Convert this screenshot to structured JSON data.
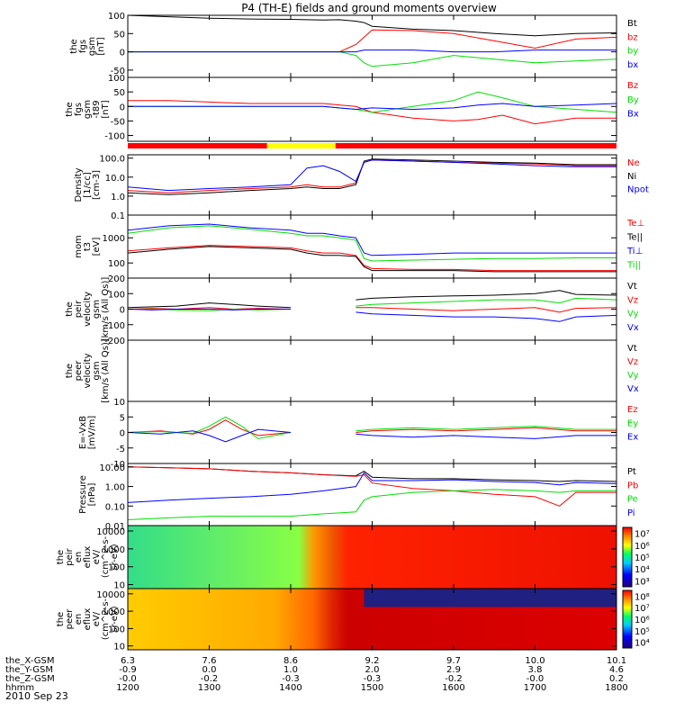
{
  "title": "P4 (TH-E) fields and ground moments overview",
  "date": "2010 Sep 23",
  "colors": {
    "black": "#000000",
    "red": "#ff0000",
    "green": "#00e000",
    "blue": "#0000ff",
    "yellow": "#ffff00"
  },
  "mode_bar": [
    {
      "from": 0,
      "to": 0.285,
      "color": "red"
    },
    {
      "from": 0.285,
      "to": 0.425,
      "color": "yellow"
    },
    {
      "from": 0.425,
      "to": 1,
      "color": "red"
    }
  ],
  "chart_data": [
    {
      "id": "p1",
      "type": "line",
      "ylabel": [
        "the",
        "fgs",
        "gsm",
        "[nT]"
      ],
      "ylim": [
        -70,
        100
      ],
      "log": false,
      "yticks": [
        {
          "v": 100,
          "t": "100"
        },
        {
          "v": 50,
          "t": "50"
        },
        {
          "v": 0,
          "t": "0"
        },
        {
          "v": -50,
          "t": "-50"
        }
      ],
      "x": [
        12.0,
        12.5,
        13.0,
        13.5,
        14.0,
        14.2,
        14.4,
        14.6,
        14.8,
        14.9,
        15.0,
        15.5,
        16.0,
        16.5,
        17.0,
        17.5,
        18.0
      ],
      "series": [
        {
          "name": "Bt",
          "color": "black",
          "values": [
            100,
            96,
            92,
            90,
            89,
            88,
            87,
            88,
            84,
            80,
            70,
            62,
            58,
            50,
            44,
            50,
            52
          ]
        },
        {
          "name": "bz",
          "color": "red",
          "values": [
            0,
            0,
            0,
            0,
            0,
            0,
            0,
            0,
            20,
            40,
            60,
            58,
            50,
            30,
            10,
            35,
            40
          ]
        },
        {
          "name": "by",
          "color": "green",
          "values": [
            0,
            0,
            0,
            0,
            0,
            0,
            0,
            0,
            -10,
            -30,
            -40,
            -30,
            -10,
            -20,
            -30,
            -25,
            -20
          ]
        },
        {
          "name": "bx",
          "color": "blue",
          "values": [
            0,
            0,
            0,
            0,
            0,
            0,
            0,
            0,
            0,
            5,
            5,
            5,
            0,
            0,
            5,
            5,
            5
          ]
        }
      ]
    },
    {
      "id": "p2",
      "type": "line",
      "ylabel": [
        "the",
        "fgs",
        "gsm",
        "-t89",
        "[nT]"
      ],
      "ylim": [
        -120,
        100
      ],
      "log": false,
      "yticks": [
        {
          "v": 100,
          "t": "100"
        },
        {
          "v": 50,
          "t": "50"
        },
        {
          "v": 0,
          "t": "0"
        },
        {
          "v": -50,
          "t": "-50"
        },
        {
          "v": -100,
          "t": "-100"
        }
      ],
      "x": [
        12.0,
        12.5,
        13.0,
        13.5,
        14.0,
        14.4,
        14.8,
        15.0,
        15.5,
        16.0,
        16.3,
        16.6,
        17.0,
        17.5,
        18.0
      ],
      "series": [
        {
          "name": "Bz",
          "color": "red",
          "values": [
            20,
            20,
            15,
            10,
            10,
            10,
            0,
            -20,
            -40,
            -50,
            -45,
            -30,
            -60,
            -40,
            -40
          ]
        },
        {
          "name": "By",
          "color": "green",
          "values": [
            0,
            0,
            0,
            0,
            0,
            0,
            -10,
            -20,
            0,
            20,
            50,
            30,
            0,
            -10,
            -20
          ]
        },
        {
          "name": "Bx",
          "color": "blue",
          "values": [
            0,
            0,
            0,
            0,
            0,
            0,
            -10,
            -5,
            -10,
            -5,
            5,
            10,
            0,
            5,
            10
          ]
        }
      ]
    },
    {
      "id": "p3",
      "type": "line",
      "ylabel": [
        "Density",
        "[1/cc]",
        "[cm-3]"
      ],
      "ylim": [
        0.1,
        150
      ],
      "log": true,
      "yticks": [
        {
          "v": 100,
          "t": "100.0"
        },
        {
          "v": 10,
          "t": "10.0"
        },
        {
          "v": 1,
          "t": "1.0"
        },
        {
          "v": 0.1,
          "t": "0.1"
        }
      ],
      "x": [
        12.0,
        12.5,
        13.0,
        13.5,
        14.0,
        14.2,
        14.4,
        14.6,
        14.8,
        14.9,
        15.0,
        15.5,
        16.0,
        16.5,
        17.0,
        17.5,
        18.0
      ],
      "series": [
        {
          "name": "Ne",
          "color": "red",
          "values": [
            2,
            1.5,
            2,
            2.5,
            3,
            4,
            3,
            3,
            5,
            60,
            80,
            70,
            60,
            55,
            50,
            40,
            40
          ]
        },
        {
          "name": "Ni",
          "color": "black",
          "values": [
            1.5,
            1.2,
            1.5,
            2,
            2.5,
            3,
            2.5,
            2.5,
            4,
            70,
            90,
            80,
            70,
            60,
            55,
            45,
            45
          ]
        },
        {
          "name": "Npot",
          "color": "blue",
          "values": [
            3,
            2,
            2.5,
            3,
            4,
            30,
            40,
            20,
            6,
            60,
            80,
            70,
            60,
            50,
            40,
            35,
            35
          ]
        }
      ]
    },
    {
      "id": "p4",
      "type": "line",
      "ylabel": [
        "mom",
        "t3",
        "[eV]"
      ],
      "ylim": [
        25,
        8000
      ],
      "log": true,
      "yticks": [
        {
          "v": 1000,
          "t": "1000"
        },
        {
          "v": 100,
          "t": "100"
        }
      ],
      "x": [
        12.0,
        12.5,
        13.0,
        13.5,
        14.0,
        14.2,
        14.4,
        14.6,
        14.8,
        14.9,
        15.0,
        15.5,
        16.0,
        16.5,
        17.0,
        17.5,
        18.0
      ],
      "series": [
        {
          "name": "Te⊥",
          "color": "red",
          "values": [
            300,
            400,
            500,
            450,
            400,
            300,
            250,
            250,
            200,
            80,
            60,
            55,
            55,
            50,
            50,
            50,
            50
          ]
        },
        {
          "name": "Te||",
          "color": "black",
          "values": [
            250,
            350,
            450,
            400,
            350,
            250,
            200,
            200,
            180,
            70,
            50,
            50,
            50,
            45,
            45,
            45,
            45
          ]
        },
        {
          "name": "Ti⊥",
          "color": "blue",
          "values": [
            2000,
            3000,
            3500,
            2500,
            2000,
            1500,
            1500,
            1200,
            1000,
            250,
            200,
            220,
            250,
            250,
            250,
            250,
            250
          ]
        },
        {
          "name": "Ti||",
          "color": "green",
          "values": [
            1500,
            2500,
            3000,
            2200,
            1500,
            1200,
            1200,
            1000,
            800,
            150,
            120,
            130,
            140,
            150,
            150,
            160,
            160
          ]
        }
      ]
    },
    {
      "id": "p5",
      "type": "line",
      "ylabel": [
        "the",
        "peir",
        "velocity",
        "gsm",
        "[km/s (All Qs)]"
      ],
      "ylim": [
        -200,
        200
      ],
      "log": false,
      "yticks": [
        {
          "v": 200,
          "t": "200"
        },
        {
          "v": 100,
          "t": "100"
        },
        {
          "v": 0,
          "t": "0"
        },
        {
          "v": -100,
          "t": "-100"
        },
        {
          "v": -200,
          "t": "-200"
        }
      ],
      "x": [
        12.0,
        12.3,
        12.6,
        13.0,
        13.3,
        13.6,
        14.0,
        14.2,
        14.8,
        15.0,
        15.5,
        16.0,
        16.5,
        17.0,
        17.3,
        17.5,
        18.0
      ],
      "series": [
        {
          "name": "Vt",
          "color": "black",
          "values": [
            10,
            15,
            20,
            40,
            30,
            20,
            10,
            null,
            60,
            70,
            80,
            85,
            90,
            100,
            120,
            95,
            90
          ]
        },
        {
          "name": "Vz",
          "color": "red",
          "values": [
            0,
            5,
            0,
            10,
            0,
            5,
            0,
            null,
            10,
            10,
            0,
            -10,
            0,
            10,
            -20,
            5,
            10
          ]
        },
        {
          "name": "Vy",
          "color": "green",
          "values": [
            0,
            0,
            -5,
            -10,
            0,
            -5,
            0,
            null,
            20,
            30,
            40,
            50,
            60,
            60,
            40,
            70,
            60
          ]
        },
        {
          "name": "Vx",
          "color": "blue",
          "values": [
            0,
            -5,
            0,
            0,
            -5,
            0,
            0,
            null,
            -20,
            -30,
            -40,
            -50,
            -50,
            -60,
            -80,
            -50,
            -40
          ]
        }
      ]
    },
    {
      "id": "p6",
      "type": "line",
      "ylabel": [
        "the",
        "peer",
        "velocity",
        "gsm",
        "[km/s (All Qs)]"
      ],
      "ylim": [
        -200,
        200
      ],
      "log": false,
      "yticks": [],
      "x": [],
      "series": [
        {
          "name": "Vt",
          "color": "black",
          "values": []
        },
        {
          "name": "Vz",
          "color": "red",
          "values": []
        },
        {
          "name": "Vy",
          "color": "green",
          "values": []
        },
        {
          "name": "Vx",
          "color": "blue",
          "values": []
        }
      ]
    },
    {
      "id": "p7",
      "type": "line",
      "ylabel": [
        "E=-VxB",
        "[mV/m]"
      ],
      "ylim": [
        -10,
        10
      ],
      "log": false,
      "yticks": [
        {
          "v": 10,
          "t": "10"
        },
        {
          "v": 5,
          "t": "5"
        },
        {
          "v": 0,
          "t": "0"
        },
        {
          "v": -5,
          "t": "-5"
        },
        {
          "v": -10,
          "t": "-10"
        }
      ],
      "x": [
        12.0,
        12.4,
        12.8,
        13.0,
        13.2,
        13.4,
        13.6,
        14.0,
        14.2,
        14.8,
        15.0,
        15.5,
        16.0,
        16.5,
        17.0,
        17.5,
        18.0
      ],
      "series": [
        {
          "name": "Ez",
          "color": "red",
          "values": [
            0,
            0.5,
            -0.5,
            1,
            4,
            1,
            -1,
            0,
            null,
            0,
            0.5,
            1,
            0.5,
            1,
            1.5,
            0.5,
            0.5
          ]
        },
        {
          "name": "Ey",
          "color": "green",
          "values": [
            0,
            0.3,
            -0.3,
            2,
            5,
            2,
            -2,
            0,
            null,
            0.5,
            1,
            1.5,
            1,
            1.5,
            2,
            1,
            1
          ]
        },
        {
          "name": "Ex",
          "color": "blue",
          "values": [
            0,
            -0.5,
            0.5,
            -1,
            -3,
            -1,
            1,
            0,
            null,
            -0.5,
            -1,
            -1.5,
            -1,
            -1.5,
            -2,
            -1,
            -1
          ]
        }
      ]
    },
    {
      "id": "p8",
      "type": "line",
      "ylabel": [
        "Pressure",
        "[nPa]"
      ],
      "ylim": [
        0.01,
        15
      ],
      "log": true,
      "yticks": [
        {
          "v": 10,
          "t": "10.00"
        },
        {
          "v": 1,
          "t": "1.00"
        },
        {
          "v": 0.1,
          "t": "0.10"
        },
        {
          "v": 0.01,
          "t": "0.01"
        }
      ],
      "x": [
        12.0,
        12.5,
        13.0,
        13.5,
        14.0,
        14.4,
        14.8,
        14.9,
        15.0,
        15.5,
        16.0,
        16.5,
        17.0,
        17.3,
        17.5,
        18.0
      ],
      "series": [
        {
          "name": "Pt",
          "color": "black",
          "values": [
            10,
            9,
            8,
            6,
            5,
            4,
            3.5,
            6,
            3,
            2.5,
            2.5,
            2.2,
            2,
            1.8,
            2,
            1.8
          ]
        },
        {
          "name": "Pb",
          "color": "red",
          "values": [
            10,
            9,
            8,
            6,
            5,
            4,
            3.3,
            4,
            1.5,
            0.8,
            0.6,
            0.4,
            0.3,
            0.1,
            0.5,
            0.5
          ]
        },
        {
          "name": "Pe",
          "color": "green",
          "values": [
            0.02,
            0.025,
            0.03,
            0.03,
            0.03,
            0.04,
            0.05,
            0.2,
            0.3,
            0.5,
            0.6,
            0.7,
            0.6,
            0.5,
            0.6,
            0.6
          ]
        },
        {
          "name": "Pi",
          "color": "blue",
          "values": [
            0.15,
            0.2,
            0.25,
            0.3,
            0.4,
            0.6,
            1,
            5,
            2,
            2,
            2.2,
            1.8,
            1.6,
            1.2,
            1.6,
            1.4
          ]
        }
      ]
    },
    {
      "id": "p9",
      "type": "heatmap",
      "ylabel": [
        "the",
        "peir",
        "en",
        "eflux",
        "eV/",
        "(cm^2-s-",
        "sr-eV)"
      ],
      "ylim": [
        6,
        20000
      ],
      "log": true,
      "yticks": [
        {
          "v": 10000,
          "t": "10000"
        },
        {
          "v": 1000,
          "t": "1000"
        },
        {
          "v": 100,
          "t": "100"
        },
        {
          "v": 10,
          "t": "10"
        }
      ],
      "cbar": [
        {
          "v": 7,
          "t": "10⁷"
        },
        {
          "v": 6,
          "t": "10⁶"
        },
        {
          "v": 5,
          "t": "10⁵"
        },
        {
          "v": 4,
          "t": "10⁴"
        },
        {
          "v": 3,
          "t": "10³"
        }
      ],
      "cbar_range": [
        2.5,
        7.5
      ]
    },
    {
      "id": "p10",
      "type": "heatmap",
      "ylabel": [
        "the",
        "peer",
        "en",
        "eflux",
        "eV/",
        "(cm^2-s-",
        "sr-eV)"
      ],
      "ylim": [
        6,
        20000
      ],
      "log": true,
      "yticks": [
        {
          "v": 10000,
          "t": "10000"
        },
        {
          "v": 1000,
          "t": "1000"
        },
        {
          "v": 100,
          "t": "100"
        },
        {
          "v": 10,
          "t": "10"
        }
      ],
      "cbar": [
        {
          "v": 8,
          "t": "10⁸"
        },
        {
          "v": 7,
          "t": "10⁷"
        },
        {
          "v": 6,
          "t": "10⁶"
        },
        {
          "v": 5,
          "t": "10⁵"
        },
        {
          "v": 4,
          "t": "10⁴"
        }
      ],
      "cbar_range": [
        3.5,
        8.5
      ]
    }
  ],
  "x_axis": {
    "xlim": [
      12.0,
      18.0
    ],
    "ticks": [
      12.0,
      13.0,
      14.0,
      15.0,
      16.0,
      17.0,
      18.0
    ],
    "rows": [
      {
        "label": "the_X-GSM",
        "values": [
          "6.3",
          "7.6",
          "8.6",
          "9.2",
          "9.7",
          "10.0",
          "10.1"
        ]
      },
      {
        "label": "the_Y-GSM",
        "values": [
          "-0.9",
          "0.0",
          "1.0",
          "2.0",
          "2.9",
          "3.8",
          "4.6"
        ]
      },
      {
        "label": "the_Z-GSM",
        "values": [
          "-0.0",
          "-0.2",
          "-0.3",
          "-0.3",
          "-0.2",
          "-0.0",
          "0.2"
        ]
      },
      {
        "label": "hhmm",
        "values": [
          "1200",
          "1300",
          "1400",
          "1500",
          "1600",
          "1700",
          "1800"
        ]
      }
    ]
  }
}
